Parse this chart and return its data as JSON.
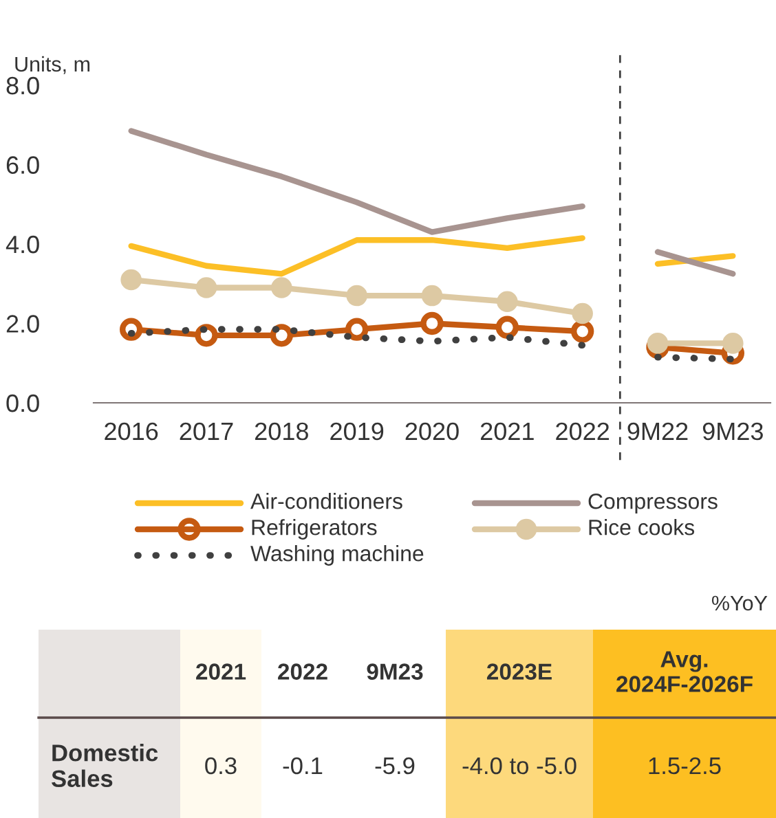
{
  "chart_data": [
    {
      "type": "line",
      "ylabel": "Units, m",
      "categories": [
        "2016",
        "2017",
        "2018",
        "2019",
        "2020",
        "2021",
        "2022",
        "9M22",
        "9M23"
      ],
      "ylim": [
        0,
        8
      ],
      "yticks": [
        {
          "value": 0,
          "label": "0.0"
        },
        {
          "value": 2,
          "label": "2.0"
        },
        {
          "value": 4,
          "label": "4.0"
        },
        {
          "value": 6,
          "label": "6.0"
        },
        {
          "value": 8,
          "label": "8.0"
        }
      ],
      "grid": false,
      "legend": "bottom",
      "series": [
        {
          "name": "Air-conditioners",
          "color": "#fcbf26",
          "marker": "none",
          "values": [
            3.95,
            3.45,
            3.25,
            4.1,
            4.1,
            3.9,
            4.15,
            3.5,
            3.7
          ]
        },
        {
          "name": "Compressors",
          "color": "#a89490",
          "marker": "none",
          "values": [
            6.85,
            6.25,
            5.7,
            5.05,
            4.3,
            4.65,
            4.95,
            3.8,
            3.25
          ]
        },
        {
          "name": "Refrigerators",
          "color": "#c55a11",
          "marker": "circle",
          "values": [
            1.85,
            1.7,
            1.7,
            1.85,
            2.0,
            1.9,
            1.8,
            1.4,
            1.25
          ]
        },
        {
          "name": "Rice cooks",
          "color": "#ddc9a3",
          "marker": "circle",
          "values": [
            3.1,
            2.9,
            2.9,
            2.7,
            2.7,
            2.55,
            2.25,
            1.5,
            1.5
          ]
        },
        {
          "name": "Washing machine",
          "color": "#404040",
          "marker": "none",
          "line_style": "dotted",
          "values": [
            1.75,
            1.85,
            1.85,
            1.65,
            1.55,
            1.65,
            1.45,
            1.15,
            1.1
          ]
        }
      ]
    },
    {
      "type": "other",
      "annotations": [
        "%YoY"
      ],
      "categories": [
        null,
        "2021",
        "2022",
        "9M23",
        "2023E",
        "Avg. 2024F-2026F"
      ],
      "y_categories": [
        "Domestic Sales"
      ],
      "cell_labels": [
        [
          "0.3",
          "-0.1",
          "-5.9",
          "-4.0 to -5.0",
          "1.5-2.5"
        ]
      ],
      "colors": [
        "#e8e4e2",
        "#fffaee",
        "#ffffff",
        "#ffffff",
        "#fdd97c",
        "#fdbf22"
      ]
    }
  ]
}
